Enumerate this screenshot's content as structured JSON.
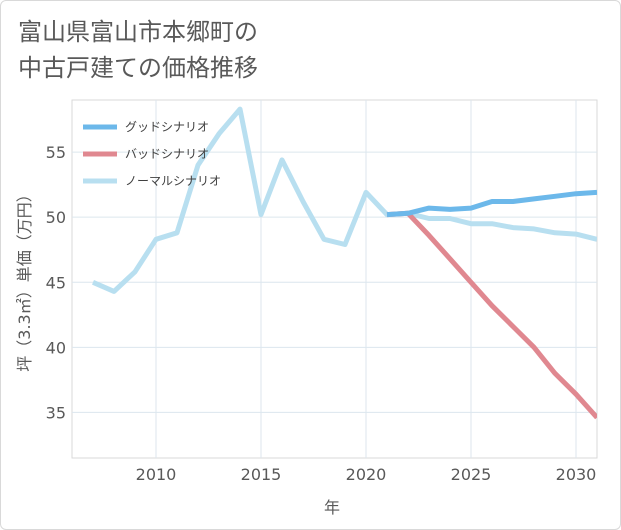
{
  "chart_data": {
    "type": "line",
    "title_line1": "富山県富山市本郷町の",
    "title_line2": "中古戸建ての価格推移",
    "xlabel": "年",
    "ylabel": "坪（3.3㎡）単価（万円）",
    "xlim": [
      2006,
      2031
    ],
    "ylim": [
      31.5,
      59
    ],
    "x_ticks": [
      2010,
      2015,
      2020,
      2025,
      2030
    ],
    "y_ticks": [
      35,
      40,
      45,
      50,
      55
    ],
    "grid": true,
    "legend_position": "top-left",
    "series": [
      {
        "name": "グッドシナリオ",
        "color": "#6cb8ea",
        "x": [
          2021,
          2022,
          2023,
          2024,
          2025,
          2026,
          2027,
          2028,
          2029,
          2030,
          2031
        ],
        "values": [
          50.2,
          50.3,
          50.7,
          50.6,
          50.7,
          51.2,
          51.2,
          51.4,
          51.6,
          51.8,
          51.9
        ]
      },
      {
        "name": "バッドシナリオ",
        "color": "#e08890",
        "x": [
          2021,
          2022,
          2023,
          2024,
          2025,
          2026,
          2027,
          2028,
          2029,
          2030,
          2031
        ],
        "values": [
          50.2,
          50.3,
          48.6,
          46.8,
          45.0,
          43.2,
          41.6,
          40.0,
          38.0,
          36.4,
          34.6
        ]
      },
      {
        "name": "ノーマルシナリオ",
        "color": "#b8dff0",
        "x": [
          2007,
          2008,
          2009,
          2010,
          2011,
          2012,
          2013,
          2014,
          2015,
          2016,
          2017,
          2018,
          2019,
          2020,
          2021,
          2022,
          2023,
          2024,
          2025,
          2026,
          2027,
          2028,
          2029,
          2030,
          2031
        ],
        "values": [
          45.0,
          44.3,
          45.8,
          48.3,
          48.8,
          54.0,
          56.4,
          58.3,
          50.2,
          54.4,
          51.2,
          48.3,
          47.9,
          51.9,
          50.2,
          50.3,
          49.9,
          49.9,
          49.5,
          49.5,
          49.2,
          49.1,
          48.8,
          48.7,
          48.3
        ]
      }
    ]
  }
}
